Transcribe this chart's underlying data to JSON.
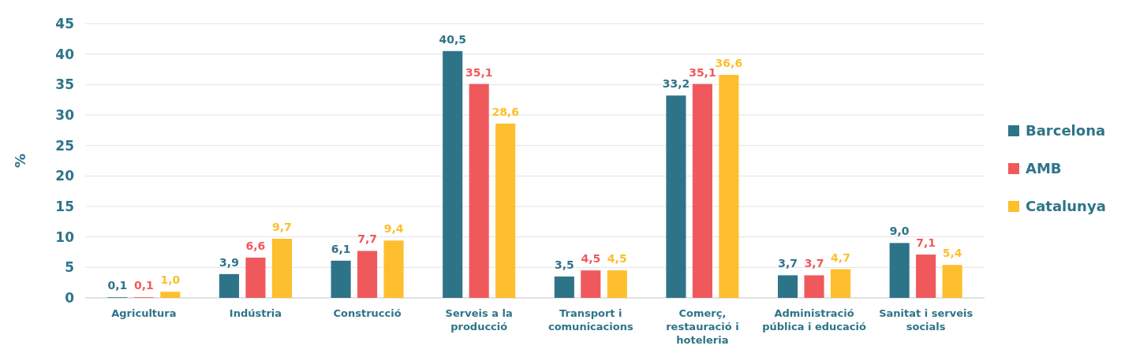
{
  "chart_data": {
    "type": "bar",
    "ylabel": "%",
    "categories": [
      "Agricultura",
      "Indústria",
      "Construcció",
      "Serveis a la producció",
      "Transport i comunicacions",
      "Comerç, restauració i hoteleria",
      "Administració pública i educació",
      "Sanitat i serveis socials"
    ],
    "series": [
      {
        "name": "Barcelona",
        "color": "#2e7489",
        "values": [
          0.1,
          3.9,
          6.1,
          40.5,
          3.5,
          33.2,
          3.7,
          9.0
        ],
        "value_labels": [
          "0,1",
          "3,9",
          "6,1",
          "40,5",
          "3,5",
          "33,2",
          "3,7",
          "9,0"
        ]
      },
      {
        "name": "AMB",
        "color": "#f0595c",
        "values": [
          0.1,
          6.6,
          7.7,
          35.1,
          4.5,
          35.1,
          3.7,
          7.1
        ],
        "value_labels": [
          "0,1",
          "6,6",
          "7,7",
          "35,1",
          "4,5",
          "35,1",
          "3,7",
          "7,1"
        ]
      },
      {
        "name": "Catalunya",
        "color": "#fdbf2d",
        "values": [
          1.0,
          9.7,
          9.4,
          28.6,
          4.5,
          36.6,
          4.7,
          5.4
        ],
        "value_labels": [
          "1,0",
          "9,7",
          "9,4",
          "28,6",
          "4,5",
          "36,6",
          "4,7",
          "5,4"
        ]
      }
    ],
    "ylim": [
      0,
      45
    ],
    "yticks": [
      0,
      5,
      10,
      15,
      20,
      25,
      30,
      35,
      40,
      45
    ],
    "grid": "y",
    "legend": "right"
  }
}
